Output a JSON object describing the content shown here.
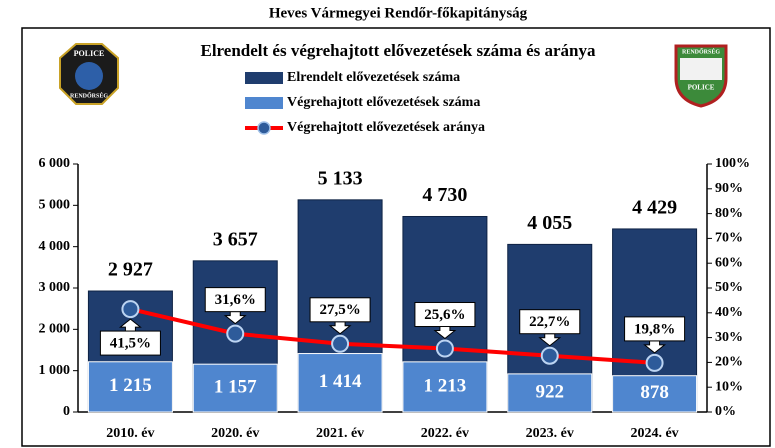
{
  "chart_data": {
    "type": "bar",
    "header": "Heves Vármegyei Rendőr-főkapitányság",
    "title": "Elrendelt és végrehajtott elővezetések száma és aránya",
    "logos": {
      "left": [
        "POLICE",
        "RENDŐRSÉG"
      ],
      "right": [
        "RENDŐRSÉG",
        "POLICE"
      ]
    },
    "categories": [
      "2010. év",
      "2020. év",
      "2021. év",
      "2022. év",
      "2023. év",
      "2024. év"
    ],
    "series": [
      {
        "name": "Elrendelt elővezetések száma",
        "color": "#1f3d6e",
        "values": [
          2927,
          3657,
          5133,
          4730,
          4055,
          4429
        ],
        "value_labels": [
          "2 927",
          "3 657",
          "5 133",
          "4 730",
          "4 055",
          "4 429"
        ]
      },
      {
        "name": "Végrehajtott elővezetések száma",
        "color": "#4f86cf",
        "values": [
          1215,
          1157,
          1414,
          1213,
          922,
          878
        ],
        "value_labels": [
          "1 215",
          "1 157",
          "1 414",
          "1 213",
          "922",
          "878"
        ]
      },
      {
        "name": "Végrehajtott elővezetések aránya",
        "type": "line",
        "axis": "y2",
        "color": "#ff0000",
        "marker_color": "#2e5b9a",
        "values": [
          41.5,
          31.6,
          27.5,
          25.6,
          22.7,
          19.8
        ],
        "value_labels": [
          "41,5%",
          "31,6%",
          "27,5%",
          "25,6%",
          "22,7%",
          "19,8%"
        ]
      }
    ],
    "ylim": [
      0,
      6000
    ],
    "yticks": [
      0,
      {
        "value": 1000,
        "label": "1 000"
      },
      {
        "value": 2000,
        "label": "2 000"
      },
      {
        "value": 3000,
        "label": "3 000"
      },
      {
        "value": 4000,
        "label": "4 000"
      },
      {
        "value": 5000,
        "label": "5 000"
      },
      {
        "value": 6000,
        "label": "6 000"
      }
    ],
    "y2lim": [
      0,
      100
    ],
    "y2ticks": [
      {
        "value": 0,
        "label": "0%"
      },
      {
        "value": 10,
        "label": "10%"
      },
      {
        "value": 20,
        "label": "20%"
      },
      {
        "value": 30,
        "label": "30%"
      },
      {
        "value": 40,
        "label": "40%"
      },
      {
        "value": 50,
        "label": "50%"
      },
      {
        "value": 60,
        "label": "60%"
      },
      {
        "value": 70,
        "label": "70%"
      },
      {
        "value": 80,
        "label": "80%"
      },
      {
        "value": 90,
        "label": "90%"
      },
      {
        "value": 100,
        "label": "100%"
      }
    ]
  }
}
